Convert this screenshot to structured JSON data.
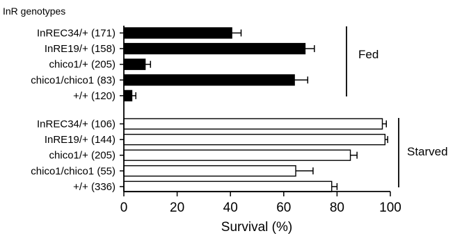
{
  "chart_data": {
    "type": "bar",
    "orientation": "horizontal",
    "corner_label": "InR genotypes",
    "xlabel": "Survival (%)",
    "xlim": [
      0,
      100
    ],
    "xticks": [
      "0",
      "20",
      "40",
      "60",
      "80",
      "100"
    ],
    "error_bars": true,
    "grid": false,
    "groups": [
      {
        "name": "Fed",
        "fill": "#000000",
        "categories": [
          "InREC34/+ (171)",
          "InRE19/+ (158)",
          "chico1/+ (205)",
          "chico1/chico1 (83)",
          "+/+ (120)"
        ],
        "values": [
          40.5,
          68,
          8,
          64,
          3
        ],
        "errors": [
          3.5,
          3.5,
          2,
          5,
          1.5
        ]
      },
      {
        "name": "Starved",
        "fill": "#ffffff",
        "categories": [
          "InREC34/+ (106)",
          "InRE19/+ (144)",
          "chico1/+ (205)",
          "chico1/chico1 (55)",
          "+/+ (336)"
        ],
        "values": [
          97,
          98,
          85,
          64.5,
          78
        ],
        "errors": [
          1.5,
          1,
          2.5,
          6.5,
          2
        ]
      }
    ]
  }
}
